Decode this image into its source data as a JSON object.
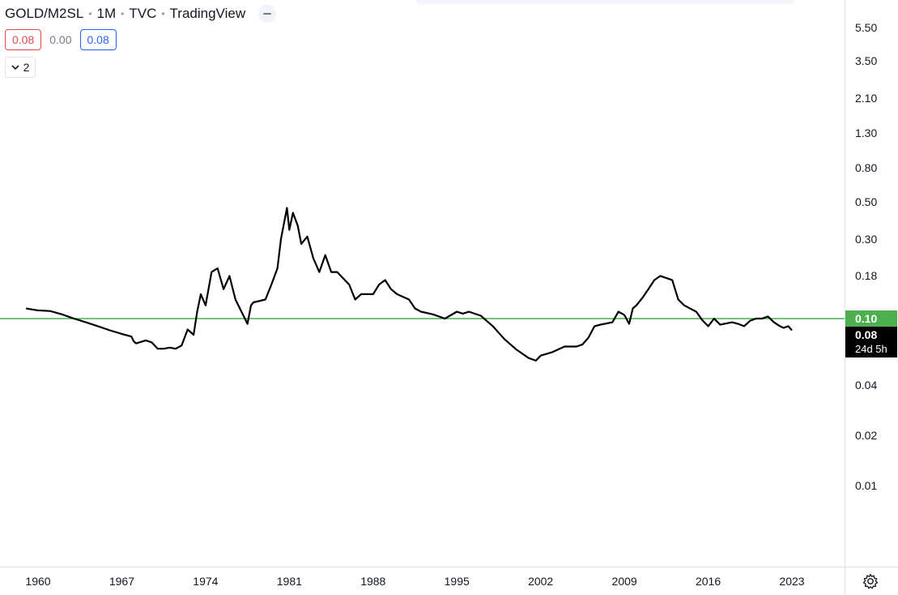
{
  "header": {
    "symbol": "GOLD/M2SL",
    "interval": "1M",
    "source": "TVC",
    "platform": "TradingView"
  },
  "legend_values": {
    "open": "0.08",
    "change": "0.00",
    "close": "0.08"
  },
  "collapse_count": "2",
  "price_tags": {
    "horizontal_line": "0.10",
    "last_price": "0.08",
    "countdown": "24d 5h"
  },
  "icons": {
    "settings": "gear-icon",
    "collapse": "chevron-down-icon",
    "visibility": "eye-icon"
  },
  "colors": {
    "line": "#000000",
    "horizontal_line": "#4caf50",
    "open_value": "#e04a4a",
    "close_value": "#2962ff",
    "last_tag": "#000000"
  },
  "chart_data": {
    "type": "line",
    "title": "GOLD/M2SL",
    "scale": "log",
    "xlabel": "",
    "ylabel": "",
    "y_ticks": [
      "5.50",
      "3.50",
      "2.10",
      "1.30",
      "0.80",
      "0.50",
      "0.30",
      "0.18",
      "0.10",
      "0.04",
      "0.02",
      "0.01"
    ],
    "x_ticks": [
      "1960",
      "1967",
      "1974",
      "1981",
      "1988",
      "1995",
      "2002",
      "2009",
      "2016",
      "2023"
    ],
    "horizontal_line": 0.1,
    "last_value": 0.08,
    "grid": false,
    "series": [
      {
        "values": [
          [
            1959.0,
            0.115
          ],
          [
            1960.0,
            0.112
          ],
          [
            1961.0,
            0.111
          ],
          [
            1962.0,
            0.106
          ],
          [
            1963.0,
            0.1
          ],
          [
            1964.0,
            0.095
          ],
          [
            1965.0,
            0.09
          ],
          [
            1966.0,
            0.085
          ],
          [
            1967.0,
            0.081
          ],
          [
            1967.8,
            0.078
          ],
          [
            1968.0,
            0.073
          ],
          [
            1968.2,
            0.071
          ],
          [
            1969.0,
            0.074
          ],
          [
            1969.5,
            0.072
          ],
          [
            1970.0,
            0.066
          ],
          [
            1970.5,
            0.066
          ],
          [
            1971.0,
            0.067
          ],
          [
            1971.5,
            0.066
          ],
          [
            1972.0,
            0.069
          ],
          [
            1972.5,
            0.086
          ],
          [
            1973.0,
            0.08
          ],
          [
            1973.3,
            0.11
          ],
          [
            1973.6,
            0.14
          ],
          [
            1974.0,
            0.12
          ],
          [
            1974.5,
            0.19
          ],
          [
            1975.0,
            0.2
          ],
          [
            1975.5,
            0.15
          ],
          [
            1976.0,
            0.18
          ],
          [
            1976.5,
            0.13
          ],
          [
            1977.0,
            0.11
          ],
          [
            1977.5,
            0.093
          ],
          [
            1977.8,
            0.12
          ],
          [
            1978.0,
            0.125
          ],
          [
            1979.0,
            0.13
          ],
          [
            1979.5,
            0.16
          ],
          [
            1980.0,
            0.2
          ],
          [
            1980.3,
            0.3
          ],
          [
            1980.8,
            0.46
          ],
          [
            1981.0,
            0.34
          ],
          [
            1981.3,
            0.43
          ],
          [
            1981.7,
            0.36
          ],
          [
            1982.0,
            0.28
          ],
          [
            1982.5,
            0.31
          ],
          [
            1983.0,
            0.23
          ],
          [
            1983.5,
            0.19
          ],
          [
            1984.0,
            0.24
          ],
          [
            1984.5,
            0.19
          ],
          [
            1985.0,
            0.19
          ],
          [
            1986.0,
            0.16
          ],
          [
            1986.5,
            0.13
          ],
          [
            1987.0,
            0.14
          ],
          [
            1988.0,
            0.14
          ],
          [
            1988.5,
            0.16
          ],
          [
            1989.0,
            0.17
          ],
          [
            1989.5,
            0.15
          ],
          [
            1990.0,
            0.14
          ],
          [
            1991.0,
            0.13
          ],
          [
            1991.5,
            0.115
          ],
          [
            1992.0,
            0.11
          ],
          [
            1993.0,
            0.106
          ],
          [
            1994.0,
            0.1
          ],
          [
            1995.0,
            0.11
          ],
          [
            1995.5,
            0.107
          ],
          [
            1996.0,
            0.11
          ],
          [
            1997.0,
            0.104
          ],
          [
            1998.0,
            0.09
          ],
          [
            1999.0,
            0.075
          ],
          [
            2000.0,
            0.065
          ],
          [
            2001.0,
            0.058
          ],
          [
            2001.6,
            0.056
          ],
          [
            2002.0,
            0.06
          ],
          [
            2003.0,
            0.063
          ],
          [
            2004.0,
            0.068
          ],
          [
            2005.0,
            0.068
          ],
          [
            2005.5,
            0.07
          ],
          [
            2006.0,
            0.077
          ],
          [
            2006.5,
            0.09
          ],
          [
            2007.0,
            0.092
          ],
          [
            2008.0,
            0.095
          ],
          [
            2008.5,
            0.11
          ],
          [
            2009.0,
            0.105
          ],
          [
            2009.4,
            0.093
          ],
          [
            2009.7,
            0.115
          ],
          [
            2010.0,
            0.12
          ],
          [
            2010.5,
            0.133
          ],
          [
            2011.0,
            0.15
          ],
          [
            2011.5,
            0.17
          ],
          [
            2012.0,
            0.18
          ],
          [
            2012.5,
            0.175
          ],
          [
            2013.0,
            0.17
          ],
          [
            2013.5,
            0.13
          ],
          [
            2014.0,
            0.12
          ],
          [
            2015.0,
            0.11
          ],
          [
            2015.5,
            0.098
          ],
          [
            2016.0,
            0.09
          ],
          [
            2016.5,
            0.1
          ],
          [
            2017.0,
            0.092
          ],
          [
            2018.0,
            0.095
          ],
          [
            2018.5,
            0.093
          ],
          [
            2019.0,
            0.09
          ],
          [
            2019.5,
            0.097
          ],
          [
            2020.0,
            0.1
          ],
          [
            2020.5,
            0.1
          ],
          [
            2021.0,
            0.103
          ],
          [
            2021.5,
            0.095
          ],
          [
            2022.0,
            0.09
          ],
          [
            2022.3,
            0.088
          ],
          [
            2022.7,
            0.09
          ],
          [
            2023.0,
            0.085
          ]
        ]
      }
    ]
  }
}
